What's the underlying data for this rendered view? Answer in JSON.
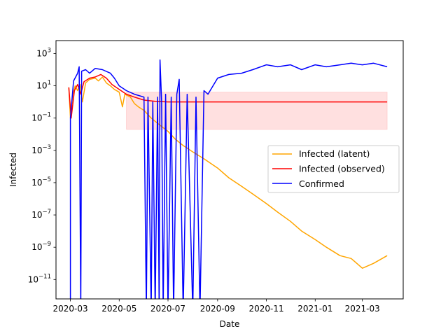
{
  "chart_data": {
    "type": "line",
    "title": "",
    "xlabel": "Date",
    "ylabel": "Infected",
    "x_type": "date",
    "xlim": [
      "2020-02-12",
      "2021-04-21"
    ],
    "ylim": [
      6.3e-13,
      6300
    ],
    "y_scale": "log",
    "grid": false,
    "legend": "center-right",
    "x_ticks": [
      "2020-03-01",
      "2020-05-01",
      "2020-07-01",
      "2020-09-01",
      "2020-11-01",
      "2021-01-01",
      "2021-03-01"
    ],
    "x_tick_labels": [
      "2020-03",
      "2020-05",
      "2020-07",
      "2020-09",
      "2020-11",
      "2021-01",
      "2021-03"
    ],
    "y_ticks": [
      1e-11,
      1e-09,
      1e-07,
      1e-05,
      0.001,
      0.1,
      10,
      1000
    ],
    "y_tick_labels": [
      {
        "base": "10",
        "exp": "−11"
      },
      {
        "base": "10",
        "exp": "−9"
      },
      {
        "base": "10",
        "exp": "−7"
      },
      {
        "base": "10",
        "exp": "−5"
      },
      {
        "base": "10",
        "exp": "−3"
      },
      {
        "base": "10",
        "exp": "−1"
      },
      {
        "base": "10",
        "exp": "1"
      },
      {
        "base": "10",
        "exp": "3"
      }
    ],
    "series": [
      {
        "name": "Infected (latent)",
        "color": "#ffa500",
        "points": [
          [
            "2020-02-28",
            8
          ],
          [
            "2020-03-01",
            0.1
          ],
          [
            "2020-03-04",
            3
          ],
          [
            "2020-03-07",
            10
          ],
          [
            "2020-03-10",
            5
          ],
          [
            "2020-03-13",
            12
          ],
          [
            "2020-03-16",
            1
          ],
          [
            "2020-03-20",
            15
          ],
          [
            "2020-03-25",
            25
          ],
          [
            "2020-04-01",
            30
          ],
          [
            "2020-04-05",
            20
          ],
          [
            "2020-04-10",
            35
          ],
          [
            "2020-04-15",
            15
          ],
          [
            "2020-04-20",
            10
          ],
          [
            "2020-04-25",
            6
          ],
          [
            "2020-05-01",
            4
          ],
          [
            "2020-05-05",
            0.5
          ],
          [
            "2020-05-08",
            3
          ],
          [
            "2020-05-15",
            2
          ],
          [
            "2020-05-20",
            0.8
          ],
          [
            "2020-05-25",
            0.5
          ],
          [
            "2020-06-01",
            0.3
          ],
          [
            "2020-06-10",
            0.1
          ],
          [
            "2020-06-20",
            0.04
          ],
          [
            "2020-07-01",
            0.015
          ],
          [
            "2020-07-10",
            0.005
          ],
          [
            "2020-07-20",
            0.002
          ],
          [
            "2020-08-01",
            0.0008
          ],
          [
            "2020-08-15",
            0.0003
          ],
          [
            "2020-09-01",
            8e-05
          ],
          [
            "2020-09-15",
            2e-05
          ],
          [
            "2020-10-01",
            6e-06
          ],
          [
            "2020-10-15",
            2e-06
          ],
          [
            "2020-11-01",
            5e-07
          ],
          [
            "2020-11-15",
            1.5e-07
          ],
          [
            "2020-12-01",
            4e-08
          ],
          [
            "2020-12-15",
            1e-08
          ],
          [
            "2021-01-01",
            3e-09
          ],
          [
            "2021-01-15",
            1e-09
          ],
          [
            "2021-02-01",
            3e-10
          ],
          [
            "2021-02-15",
            2e-10
          ],
          [
            "2021-03-01",
            5e-11
          ],
          [
            "2021-03-15",
            1e-10
          ],
          [
            "2021-04-01",
            3e-10
          ]
        ]
      },
      {
        "name": "Infected (observed)",
        "color": "#ff0000",
        "band_low": 0.02,
        "band_high": 4,
        "points": [
          [
            "2020-02-28",
            8
          ],
          [
            "2020-03-02",
            0.1
          ],
          [
            "2020-03-06",
            5
          ],
          [
            "2020-03-10",
            12
          ],
          [
            "2020-03-14",
            3
          ],
          [
            "2020-03-18",
            18
          ],
          [
            "2020-03-25",
            30
          ],
          [
            "2020-04-01",
            35
          ],
          [
            "2020-04-08",
            50
          ],
          [
            "2020-04-15",
            30
          ],
          [
            "2020-04-22",
            12
          ],
          [
            "2020-05-01",
            6
          ],
          [
            "2020-05-10",
            3
          ],
          [
            "2020-05-20",
            2
          ],
          [
            "2020-06-01",
            1.3
          ],
          [
            "2020-06-15",
            1.1
          ],
          [
            "2020-07-01",
            1
          ],
          [
            "2020-08-01",
            1
          ],
          [
            "2020-09-01",
            1
          ],
          [
            "2020-10-01",
            1
          ],
          [
            "2020-11-01",
            1
          ],
          [
            "2020-12-01",
            1
          ],
          [
            "2021-01-01",
            1
          ],
          [
            "2021-02-01",
            1
          ],
          [
            "2021-03-01",
            1
          ],
          [
            "2021-04-01",
            1
          ]
        ]
      },
      {
        "name": "Confirmed",
        "color": "#0000ff",
        "points": [
          [
            "2020-03-01",
            1e-13
          ],
          [
            "2020-03-01",
            0.1
          ],
          [
            "2020-03-05",
            20
          ],
          [
            "2020-03-10",
            60
          ],
          [
            "2020-03-12",
            150
          ],
          [
            "2020-03-14",
            1e-13
          ],
          [
            "2020-03-15",
            80
          ],
          [
            "2020-03-20",
            100
          ],
          [
            "2020-03-25",
            60
          ],
          [
            "2020-04-01",
            120
          ],
          [
            "2020-04-10",
            100
          ],
          [
            "2020-04-20",
            60
          ],
          [
            "2020-04-25",
            30
          ],
          [
            "2020-05-01",
            10
          ],
          [
            "2020-05-10",
            5
          ],
          [
            "2020-05-20",
            3
          ],
          [
            "2020-06-01",
            2
          ],
          [
            "2020-06-04",
            1e-13
          ],
          [
            "2020-06-06",
            2
          ],
          [
            "2020-06-10",
            1e-13
          ],
          [
            "2020-06-12",
            1
          ],
          [
            "2020-06-15",
            1e-13
          ],
          [
            "2020-06-18",
            2
          ],
          [
            "2020-06-20",
            1e-13
          ],
          [
            "2020-06-21",
            400
          ],
          [
            "2020-06-23",
            1
          ],
          [
            "2020-06-25",
            1e-13
          ],
          [
            "2020-06-28",
            3
          ],
          [
            "2020-07-01",
            1e-13
          ],
          [
            "2020-07-05",
            2
          ],
          [
            "2020-07-08",
            1e-13
          ],
          [
            "2020-07-12",
            3
          ],
          [
            "2020-07-15",
            25
          ],
          [
            "2020-07-20",
            1e-13
          ],
          [
            "2020-07-25",
            3
          ],
          [
            "2020-08-01",
            1e-13
          ],
          [
            "2020-08-05",
            2
          ],
          [
            "2020-08-10",
            1e-13
          ],
          [
            "2020-08-15",
            5
          ],
          [
            "2020-08-20",
            3
          ],
          [
            "2020-09-01",
            30
          ],
          [
            "2020-09-15",
            50
          ],
          [
            "2020-10-01",
            60
          ],
          [
            "2020-10-15",
            100
          ],
          [
            "2020-11-01",
            200
          ],
          [
            "2020-11-15",
            150
          ],
          [
            "2020-12-01",
            200
          ],
          [
            "2020-12-15",
            100
          ],
          [
            "2021-01-01",
            200
          ],
          [
            "2021-01-15",
            150
          ],
          [
            "2021-02-01",
            200
          ],
          [
            "2021-02-15",
            250
          ],
          [
            "2021-03-01",
            200
          ],
          [
            "2021-03-15",
            250
          ],
          [
            "2021-04-01",
            150
          ]
        ]
      }
    ]
  }
}
